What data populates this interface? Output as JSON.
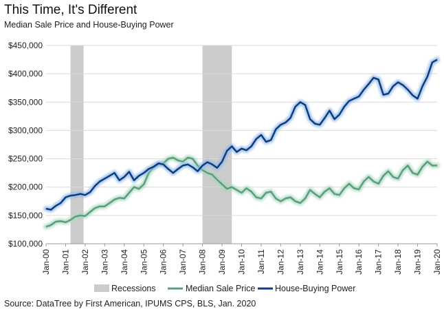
{
  "title": "This Time, It's Different",
  "subtitle": "Median Sale Price and House-Buying Power",
  "source": "Source: DataTree by First American, IPUMS CPS, BLS, Jan. 2020",
  "colors": {
    "median_sale_price": "#5a9f7d",
    "median_glow": "#a9d7bd",
    "house_buying_power": "#0b3d7f",
    "power_glow": "#8fb6e6",
    "recession": "#cccccc",
    "grid": "#d9d9d9",
    "axis": "#999999"
  },
  "chart_data": {
    "type": "line",
    "title": "This Time, It's Different",
    "subtitle": "Median Sale Price and House-Buying Power",
    "xlabel": "",
    "ylabel": "",
    "x_range": [
      "Jan-00",
      "Jan-20"
    ],
    "ylim": [
      100000,
      450000
    ],
    "y_ticks": [
      "$100,000",
      "$150,000",
      "$200,000",
      "$250,000",
      "$300,000",
      "$350,000",
      "$400,000",
      "$450,000"
    ],
    "x_ticks": [
      "Jan-00",
      "Jan-01",
      "Jan-02",
      "Jan-03",
      "Jan-04",
      "Jan-05",
      "Jan-06",
      "Jan-07",
      "Jan-08",
      "Jan-09",
      "Jan-10",
      "Jan-11",
      "Jan-12",
      "Jan-13",
      "Jan-14",
      "Jan-15",
      "Jan-16",
      "Jan-17",
      "Jan-18",
      "Jan-19",
      "Jan-20"
    ],
    "grid": "horizontal",
    "legend": "bottom",
    "legend_entries": [
      "Recessions",
      "Median Sale Price",
      "House-Buying Power"
    ],
    "recessions": [
      {
        "start": 2001.25,
        "end": 2001.92
      },
      {
        "start": 2008.0,
        "end": 2009.5
      }
    ],
    "series": [
      {
        "name": "Median Sale Price",
        "points": [
          [
            2000.0,
            130000
          ],
          [
            2000.25,
            133000
          ],
          [
            2000.5,
            139000
          ],
          [
            2000.75,
            140000
          ],
          [
            2001.0,
            138000
          ],
          [
            2001.25,
            142000
          ],
          [
            2001.5,
            148000
          ],
          [
            2001.75,
            150000
          ],
          [
            2002.0,
            149000
          ],
          [
            2002.25,
            156000
          ],
          [
            2002.5,
            163000
          ],
          [
            2002.75,
            166000
          ],
          [
            2003.0,
            166000
          ],
          [
            2003.25,
            172000
          ],
          [
            2003.5,
            178000
          ],
          [
            2003.75,
            181000
          ],
          [
            2004.0,
            180000
          ],
          [
            2004.25,
            190000
          ],
          [
            2004.5,
            200000
          ],
          [
            2004.75,
            197000
          ],
          [
            2005.0,
            205000
          ],
          [
            2005.25,
            225000
          ],
          [
            2005.5,
            235000
          ],
          [
            2005.75,
            240000
          ],
          [
            2006.0,
            242000
          ],
          [
            2006.25,
            250000
          ],
          [
            2006.5,
            252000
          ],
          [
            2006.75,
            247000
          ],
          [
            2007.0,
            245000
          ],
          [
            2007.25,
            252000
          ],
          [
            2007.5,
            250000
          ],
          [
            2007.75,
            238000
          ],
          [
            2008.0,
            230000
          ],
          [
            2008.25,
            225000
          ],
          [
            2008.5,
            222000
          ],
          [
            2008.75,
            213000
          ],
          [
            2009.0,
            205000
          ],
          [
            2009.25,
            197000
          ],
          [
            2009.5,
            200000
          ],
          [
            2009.75,
            195000
          ],
          [
            2010.0,
            190000
          ],
          [
            2010.25,
            198000
          ],
          [
            2010.5,
            192000
          ],
          [
            2010.75,
            182000
          ],
          [
            2011.0,
            180000
          ],
          [
            2011.25,
            190000
          ],
          [
            2011.5,
            192000
          ],
          [
            2011.75,
            180000
          ],
          [
            2012.0,
            175000
          ],
          [
            2012.25,
            180000
          ],
          [
            2012.5,
            182000
          ],
          [
            2012.75,
            175000
          ],
          [
            2013.0,
            172000
          ],
          [
            2013.25,
            180000
          ],
          [
            2013.5,
            195000
          ],
          [
            2013.75,
            188000
          ],
          [
            2014.0,
            182000
          ],
          [
            2014.25,
            192000
          ],
          [
            2014.5,
            198000
          ],
          [
            2014.75,
            188000
          ],
          [
            2015.0,
            186000
          ],
          [
            2015.25,
            198000
          ],
          [
            2015.5,
            206000
          ],
          [
            2015.75,
            198000
          ],
          [
            2016.0,
            196000
          ],
          [
            2016.25,
            210000
          ],
          [
            2016.5,
            218000
          ],
          [
            2016.75,
            210000
          ],
          [
            2017.0,
            206000
          ],
          [
            2017.25,
            220000
          ],
          [
            2017.5,
            228000
          ],
          [
            2017.75,
            218000
          ],
          [
            2018.0,
            215000
          ],
          [
            2018.25,
            230000
          ],
          [
            2018.5,
            238000
          ],
          [
            2018.75,
            225000
          ],
          [
            2019.0,
            222000
          ],
          [
            2019.25,
            236000
          ],
          [
            2019.5,
            245000
          ],
          [
            2019.75,
            238000
          ],
          [
            2020.0,
            238000
          ]
        ]
      },
      {
        "name": "House-Buying Power",
        "points": [
          [
            2000.0,
            162000
          ],
          [
            2000.25,
            160000
          ],
          [
            2000.5,
            167000
          ],
          [
            2000.75,
            172000
          ],
          [
            2001.0,
            182000
          ],
          [
            2001.25,
            185000
          ],
          [
            2001.5,
            186000
          ],
          [
            2001.75,
            188000
          ],
          [
            2002.0,
            186000
          ],
          [
            2002.25,
            191000
          ],
          [
            2002.5,
            202000
          ],
          [
            2002.75,
            210000
          ],
          [
            2003.0,
            215000
          ],
          [
            2003.25,
            220000
          ],
          [
            2003.5,
            225000
          ],
          [
            2003.75,
            212000
          ],
          [
            2004.0,
            218000
          ],
          [
            2004.25,
            227000
          ],
          [
            2004.5,
            212000
          ],
          [
            2004.75,
            220000
          ],
          [
            2005.0,
            225000
          ],
          [
            2005.25,
            232000
          ],
          [
            2005.5,
            236000
          ],
          [
            2005.75,
            242000
          ],
          [
            2006.0,
            240000
          ],
          [
            2006.25,
            232000
          ],
          [
            2006.5,
            225000
          ],
          [
            2006.75,
            232000
          ],
          [
            2007.0,
            238000
          ],
          [
            2007.25,
            240000
          ],
          [
            2007.5,
            235000
          ],
          [
            2007.75,
            228000
          ],
          [
            2008.0,
            238000
          ],
          [
            2008.25,
            244000
          ],
          [
            2008.5,
            240000
          ],
          [
            2008.75,
            234000
          ],
          [
            2009.0,
            245000
          ],
          [
            2009.25,
            264000
          ],
          [
            2009.5,
            272000
          ],
          [
            2009.75,
            262000
          ],
          [
            2010.0,
            268000
          ],
          [
            2010.25,
            265000
          ],
          [
            2010.5,
            272000
          ],
          [
            2010.75,
            285000
          ],
          [
            2011.0,
            292000
          ],
          [
            2011.25,
            280000
          ],
          [
            2011.5,
            283000
          ],
          [
            2011.75,
            302000
          ],
          [
            2012.0,
            310000
          ],
          [
            2012.25,
            314000
          ],
          [
            2012.5,
            322000
          ],
          [
            2012.75,
            342000
          ],
          [
            2013.0,
            350000
          ],
          [
            2013.25,
            345000
          ],
          [
            2013.5,
            320000
          ],
          [
            2013.75,
            312000
          ],
          [
            2014.0,
            310000
          ],
          [
            2014.25,
            322000
          ],
          [
            2014.5,
            335000
          ],
          [
            2014.75,
            320000
          ],
          [
            2015.0,
            328000
          ],
          [
            2015.25,
            342000
          ],
          [
            2015.5,
            352000
          ],
          [
            2015.75,
            356000
          ],
          [
            2016.0,
            360000
          ],
          [
            2016.25,
            372000
          ],
          [
            2016.5,
            382000
          ],
          [
            2016.75,
            393000
          ],
          [
            2017.0,
            390000
          ],
          [
            2017.25,
            363000
          ],
          [
            2017.5,
            365000
          ],
          [
            2017.75,
            378000
          ],
          [
            2018.0,
            385000
          ],
          [
            2018.25,
            380000
          ],
          [
            2018.5,
            372000
          ],
          [
            2018.75,
            362000
          ],
          [
            2019.0,
            356000
          ],
          [
            2019.25,
            378000
          ],
          [
            2019.5,
            395000
          ],
          [
            2019.75,
            420000
          ],
          [
            2020.0,
            425000
          ]
        ]
      }
    ]
  }
}
